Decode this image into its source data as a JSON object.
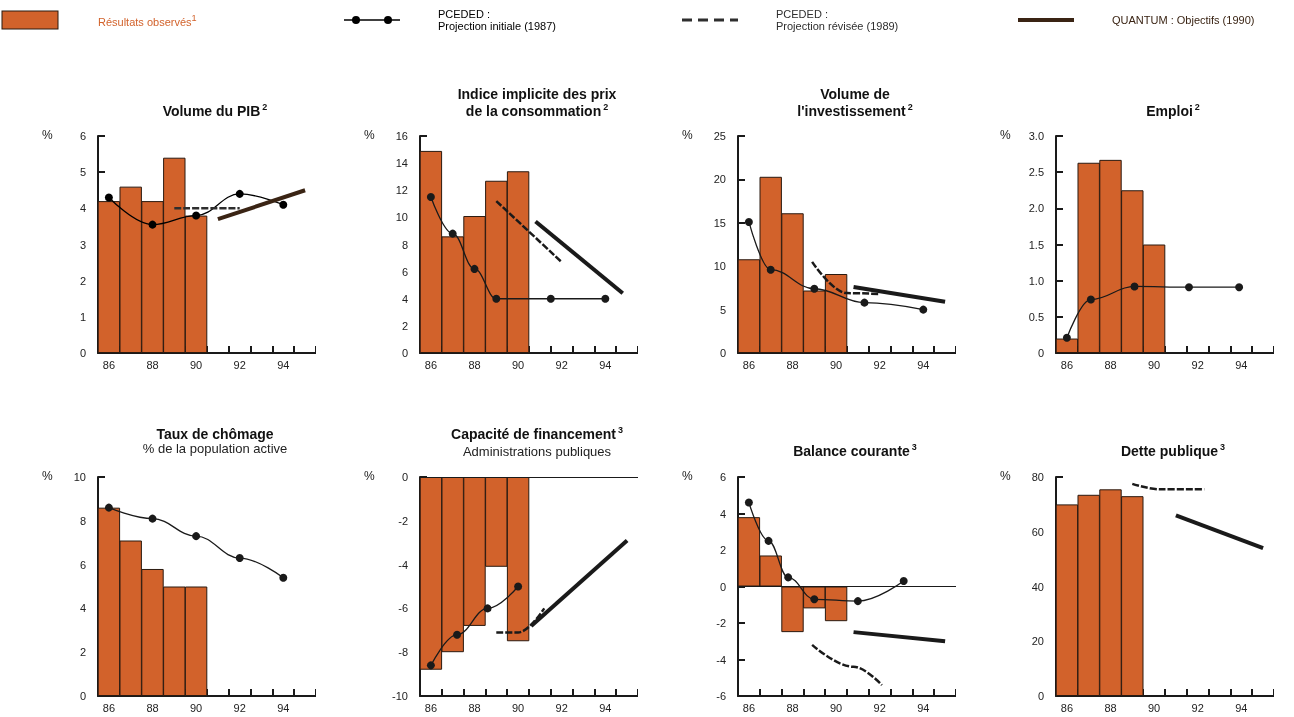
{
  "chart_data": [
    {
      "type": "bar",
      "title": "Volume du PIB$^{2}$",
      "ylabel": "%",
      "legend": "top",
      "xlim": [
        85.5,
        95.5
      ],
      "xticks": [
        {
          "value": 85.5,
          "label": null
        },
        86,
        {
          "value": 86.5,
          "label": null
        },
        {
          "value": 87.5,
          "label": null
        },
        88,
        {
          "value": 88.5,
          "label": null
        },
        {
          "value": 89.5,
          "label": null
        },
        90,
        {
          "value": 90.5,
          "label": null
        },
        {
          "value": 91.5,
          "label": null
        },
        92,
        {
          "value": 92.5,
          "label": null
        },
        {
          "value": 93.5,
          "label": null
        },
        94,
        {
          "value": 94.5,
          "label": null
        },
        {
          "value": 95.5,
          "label": null
        }
      ],
      "ylim": [
        0,
        6
      ],
      "yticks": [
        0,
        1,
        2,
        3,
        4,
        5,
        6
      ],
      "series": [
        {
          "name": "Résultats observés$^{1}$",
          "type": "bar",
          "color": "#d2622b",
          "x": [
            86,
            87,
            88,
            89,
            90
          ],
          "values": [
            4.2,
            4.6,
            4.2,
            5.4,
            3.8
          ]
        },
        {
          "name": "PCEDED :\nProjection initiale (1987)",
          "type": "line",
          "marker": "circle",
          "color": "#000000",
          "x": [
            86,
            88,
            90,
            92,
            94
          ],
          "values": [
            4.3,
            3.55,
            3.8,
            4.4,
            4.1
          ]
        },
        {
          "name": "PCEDED :\nProjection révisée (1989)",
          "type": "line",
          "line_style": "dashed",
          "color": "#2e2e2e",
          "x": [
            89,
            92
          ],
          "values": [
            4.0,
            4.0
          ]
        },
        {
          "name": "QUANTUM : Objectifs (1990)",
          "type": "line",
          "color": "#3a2414",
          "x": [
            91,
            95
          ],
          "values": [
            3.7,
            4.5
          ]
        }
      ]
    },
    {
      "type": "bar",
      "title": "Indice implicite des prix\nde la consommation$^{2}$",
      "ylabel": "%",
      "xlim": [
        85.5,
        95.5
      ],
      "xticks": [
        {
          "value": 85.5,
          "label": null
        },
        86,
        {
          "value": 86.5,
          "label": null
        },
        {
          "value": 87.5,
          "label": null
        },
        88,
        {
          "value": 88.5,
          "label": null
        },
        {
          "value": 89.5,
          "label": null
        },
        90,
        {
          "value": 90.5,
          "label": null
        },
        {
          "value": 91.5,
          "label": null
        },
        92,
        {
          "value": 92.5,
          "label": null
        },
        {
          "value": 93.5,
          "label": null
        },
        94,
        {
          "value": 94.5,
          "label": null
        },
        {
          "value": 95.5,
          "label": null
        }
      ],
      "ylim": [
        0,
        16
      ],
      "yticks": [
        0,
        2,
        4,
        6,
        8,
        10,
        12,
        14,
        16
      ],
      "series": [
        {
          "type": "bar",
          "color": "#d2622b",
          "x": [
            86,
            87,
            88,
            89,
            90
          ],
          "values": [
            14.9,
            8.6,
            10.1,
            12.7,
            13.4
          ]
        },
        {
          "type": "line",
          "marker": "circle",
          "color": "#1a1a1a",
          "x": [
            86,
            87,
            88,
            89,
            91.5,
            94
          ],
          "values": [
            11.5,
            8.8,
            6.2,
            4.0,
            4.0,
            4.0
          ]
        },
        {
          "type": "line",
          "line_style": "dashed",
          "color": "#1a1a1a",
          "x": [
            89,
            92
          ],
          "values": [
            11.2,
            6.7
          ]
        },
        {
          "type": "line",
          "color": "#1a1a1a",
          "x": [
            90.8,
            94.8
          ],
          "values": [
            9.7,
            4.4
          ]
        }
      ]
    },
    {
      "type": "bar",
      "title": "Volume de\nl'investissement$^{2}$",
      "ylabel": "%",
      "xlim": [
        85.5,
        95.5
      ],
      "xticks": [
        {
          "value": 85.5,
          "label": null
        },
        86,
        {
          "value": 86.5,
          "label": null
        },
        {
          "value": 87.5,
          "label": null
        },
        88,
        {
          "value": 88.5,
          "label": null
        },
        {
          "value": 89.5,
          "label": null
        },
        90,
        {
          "value": 90.5,
          "label": null
        },
        {
          "value": 91.5,
          "label": null
        },
        92,
        {
          "value": 92.5,
          "label": null
        },
        {
          "value": 93.5,
          "label": null
        },
        94,
        {
          "value": 94.5,
          "label": null
        },
        {
          "value": 95.5,
          "label": null
        }
      ],
      "ylim": [
        0,
        25
      ],
      "yticks": [
        0,
        5,
        10,
        15,
        20,
        25
      ],
      "series": [
        {
          "type": "bar",
          "color": "#d2622b",
          "x": [
            86,
            87,
            88,
            89,
            90
          ],
          "values": [
            10.8,
            20.3,
            16.1,
            7.2,
            9.1
          ]
        },
        {
          "type": "line",
          "marker": "circle",
          "color": "#1a1a1a",
          "x": [
            86,
            87,
            89,
            91.3,
            94
          ],
          "values": [
            15.1,
            9.6,
            7.4,
            5.8,
            5.0
          ]
        },
        {
          "type": "line",
          "line_style": "dashed",
          "color": "#1a1a1a",
          "x": [
            88.9,
            90.5,
            92
          ],
          "values": [
            10.5,
            6.9,
            6.8
          ]
        },
        {
          "type": "line",
          "color": "#1a1a1a",
          "x": [
            90.8,
            95
          ],
          "values": [
            7.6,
            5.9
          ]
        }
      ]
    },
    {
      "type": "bar",
      "title": "Emploi$^{2}$",
      "ylabel": "%",
      "xlim": [
        85.5,
        95.5
      ],
      "xticks": [
        {
          "value": 85.5,
          "label": null
        },
        86,
        {
          "value": 86.5,
          "label": null
        },
        {
          "value": 87.5,
          "label": null
        },
        88,
        {
          "value": 88.5,
          "label": null
        },
        {
          "value": 89.5,
          "label": null
        },
        90,
        {
          "value": 90.5,
          "label": null
        },
        {
          "value": 91.5,
          "label": null
        },
        92,
        {
          "value": 92.5,
          "label": null
        },
        {
          "value": 93.5,
          "label": null
        },
        94,
        {
          "value": 94.5,
          "label": null
        },
        {
          "value": 95.5,
          "label": null
        }
      ],
      "ylim": [
        0,
        3
      ],
      "yticks": [
        0,
        0.5,
        {
          "value": 1,
          "label": "1.0"
        },
        1.5,
        {
          "value": 2,
          "label": "2.0"
        },
        2.5,
        {
          "value": 3,
          "label": "3.0"
        }
      ],
      "series": [
        {
          "type": "bar",
          "color": "#d2622b",
          "x": [
            86,
            87,
            88,
            89,
            90
          ],
          "values": [
            0.2,
            2.63,
            2.67,
            2.25,
            1.5
          ]
        },
        {
          "type": "line",
          "marker": "circle",
          "color": "#1a1a1a",
          "x": [
            86,
            87.1,
            89.1,
            91.6,
            93.9
          ],
          "values": [
            0.21,
            0.74,
            0.92,
            0.91,
            0.91
          ]
        }
      ]
    },
    {
      "type": "bar",
      "title": "Taux de chômage",
      "subtitle": "% de la population active",
      "ylabel": "%",
      "xlim": [
        85.5,
        95.5
      ],
      "xticks": [
        {
          "value": 85.5,
          "label": null
        },
        86,
        {
          "value": 86.5,
          "label": null
        },
        {
          "value": 87.5,
          "label": null
        },
        88,
        {
          "value": 88.5,
          "label": null
        },
        {
          "value": 89.5,
          "label": null
        },
        90,
        {
          "value": 90.5,
          "label": null
        },
        {
          "value": 91.5,
          "label": null
        },
        92,
        {
          "value": 92.5,
          "label": null
        },
        {
          "value": 93.5,
          "label": null
        },
        94,
        {
          "value": 94.5,
          "label": null
        },
        {
          "value": 95.5,
          "label": null
        }
      ],
      "ylim": [
        0,
        10
      ],
      "yticks": [
        0,
        2,
        4,
        6,
        8,
        10
      ],
      "series": [
        {
          "type": "bar",
          "color": "#d2622b",
          "x": [
            86,
            87,
            88,
            89,
            90
          ],
          "values": [
            8.6,
            7.1,
            5.8,
            5.0,
            5.0
          ]
        },
        {
          "type": "line",
          "marker": "circle",
          "color": "#1a1a1a",
          "x": [
            86,
            88,
            90,
            92,
            94
          ],
          "values": [
            8.6,
            8.1,
            7.3,
            6.3,
            5.4
          ]
        }
      ]
    },
    {
      "type": "bar",
      "title": "Capacité de financement$^{3}$",
      "subtitle": "Administrations publiques",
      "ylabel": "%",
      "xlim": [
        85.5,
        95.5
      ],
      "xticks": [
        {
          "value": 85.5,
          "label": null
        },
        86,
        {
          "value": 86.5,
          "label": null
        },
        {
          "value": 87.5,
          "label": null
        },
        88,
        {
          "value": 88.5,
          "label": null
        },
        {
          "value": 89.5,
          "label": null
        },
        90,
        {
          "value": 90.5,
          "label": null
        },
        {
          "value": 91.5,
          "label": null
        },
        92,
        {
          "value": 92.5,
          "label": null
        },
        {
          "value": 93.5,
          "label": null
        },
        94,
        {
          "value": 94.5,
          "label": null
        },
        {
          "value": 95.5,
          "label": null
        }
      ],
      "ylim": [
        -10,
        0
      ],
      "yticks": [
        -10,
        -8,
        -6,
        -4,
        -2,
        0
      ],
      "ref_lines": [
        {
          "axis": "y",
          "value": 0
        }
      ],
      "series": [
        {
          "type": "bar",
          "color": "#d2622b",
          "x": [
            86,
            87,
            88,
            89,
            90
          ],
          "values": [
            -8.8,
            -8.0,
            -6.8,
            -4.1,
            -7.5
          ]
        },
        {
          "type": "line",
          "marker": "circle",
          "color": "#1a1a1a",
          "x": [
            86,
            87.2,
            88.6,
            90
          ],
          "values": [
            -8.6,
            -7.2,
            -6.0,
            -5.0
          ]
        },
        {
          "type": "line",
          "line_style": "dashed",
          "color": "#1a1a1a",
          "x": [
            89,
            90,
            91.2
          ],
          "values": [
            -7.1,
            -7.1,
            -6.0
          ]
        },
        {
          "type": "line",
          "color": "#1a1a1a",
          "x": [
            90.6,
            95
          ],
          "values": [
            -6.8,
            -2.9
          ]
        }
      ]
    },
    {
      "type": "bar",
      "title": "Balance courante$^{3}$",
      "ylabel": "%",
      "xlim": [
        85.5,
        95.5
      ],
      "xticks": [
        {
          "value": 85.5,
          "label": null
        },
        86,
        {
          "value": 86.5,
          "label": null
        },
        {
          "value": 87.5,
          "label": null
        },
        88,
        {
          "value": 88.5,
          "label": null
        },
        {
          "value": 89.5,
          "label": null
        },
        90,
        {
          "value": 90.5,
          "label": null
        },
        {
          "value": 91.5,
          "label": null
        },
        92,
        {
          "value": 92.5,
          "label": null
        },
        {
          "value": 93.5,
          "label": null
        },
        94,
        {
          "value": 94.5,
          "label": null
        },
        {
          "value": 95.5,
          "label": null
        }
      ],
      "ylim": [
        -6,
        6
      ],
      "yticks": [
        -6,
        -4,
        -2,
        0,
        2,
        4,
        6
      ],
      "ref_lines": [
        {
          "axis": "y",
          "value": 0
        }
      ],
      "series": [
        {
          "type": "bar",
          "color": "#d2622b",
          "x": [
            86,
            87,
            88,
            89,
            90
          ],
          "values": [
            3.8,
            1.7,
            -2.5,
            -1.2,
            -1.9
          ]
        },
        {
          "type": "line",
          "marker": "circle",
          "color": "#1a1a1a",
          "x": [
            86,
            86.9,
            87.8,
            89,
            91,
            93.1
          ],
          "values": [
            4.6,
            2.5,
            0.5,
            -0.7,
            -0.8,
            0.3
          ]
        },
        {
          "type": "line",
          "line_style": "dashed",
          "color": "#1a1a1a",
          "x": [
            88.9,
            90.8,
            92.1
          ],
          "values": [
            -3.2,
            -4.4,
            -5.4
          ]
        },
        {
          "type": "line",
          "color": "#1a1a1a",
          "x": [
            90.8,
            95
          ],
          "values": [
            -2.5,
            -3.0
          ]
        }
      ]
    },
    {
      "type": "bar",
      "title": "Dette publique$^{3}$",
      "ylabel": "%",
      "xlim": [
        85.5,
        95.5
      ],
      "xticks": [
        {
          "value": 85.5,
          "label": null
        },
        86,
        {
          "value": 86.5,
          "label": null
        },
        {
          "value": 87.5,
          "label": null
        },
        88,
        {
          "value": 88.5,
          "label": null
        },
        {
          "value": 89.5,
          "label": null
        },
        90,
        {
          "value": 90.5,
          "label": null
        },
        {
          "value": 91.5,
          "label": null
        },
        92,
        {
          "value": 92.5,
          "label": null
        },
        {
          "value": 93.5,
          "label": null
        },
        94,
        {
          "value": 94.5,
          "label": null
        },
        {
          "value": 95.5,
          "label": null
        }
      ],
      "ylim": [
        0,
        80
      ],
      "yticks": [
        0,
        20,
        40,
        60,
        80
      ],
      "series": [
        {
          "type": "bar",
          "color": "#d2622b",
          "x": [
            86,
            87,
            88,
            89
          ],
          "values": [
            70,
            73.5,
            75.5,
            73
          ]
        },
        {
          "type": "line",
          "line_style": "dashed",
          "color": "#1a1a1a",
          "x": [
            89,
            90.3,
            92.3
          ],
          "values": [
            77.5,
            75.5,
            75.5
          ]
        },
        {
          "type": "line",
          "color": "#1a1a1a",
          "x": [
            91,
            95
          ],
          "values": [
            66,
            54
          ]
        }
      ]
    }
  ]
}
